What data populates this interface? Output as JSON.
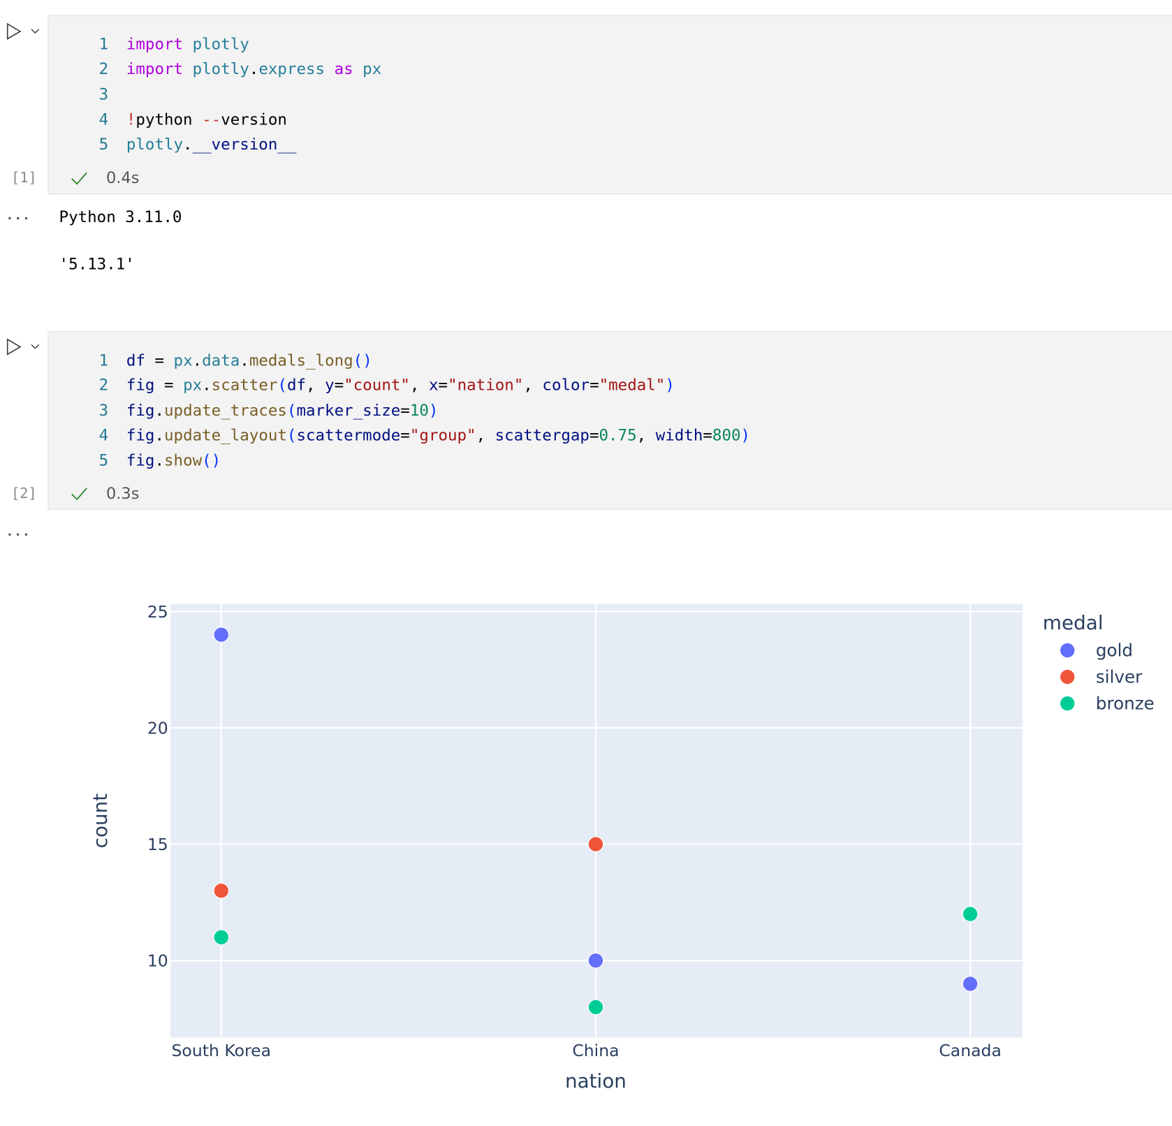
{
  "cells": [
    {
      "prompt": "[1]",
      "time": "0.4s",
      "line_numbers": [
        1,
        2,
        3,
        4,
        5
      ],
      "code": [
        [
          "import",
          " plotly"
        ],
        [
          "import",
          " plotly",
          ".",
          "express",
          " as",
          " px"
        ],
        [],
        [
          "!",
          "python",
          " --",
          "version"
        ],
        [
          "plotly",
          ".",
          "__version__"
        ]
      ],
      "output": [
        "Python 3.11.0",
        "'5.13.1'"
      ]
    },
    {
      "prompt": "[2]",
      "time": "0.3s",
      "line_numbers": [
        1,
        2,
        3,
        4,
        5
      ],
      "code": [
        [
          "df",
          " = ",
          "px",
          ".",
          "data",
          ".",
          "medals_long",
          "()"
        ],
        [
          "fig",
          " = ",
          "px",
          ".",
          "scatter",
          "(",
          "df",
          ", ",
          "y",
          "=",
          "\"count\"",
          ", ",
          "x",
          "=",
          "\"nation\"",
          ", ",
          "color",
          "=",
          "\"medal\"",
          ")"
        ],
        [
          "fig",
          ".",
          "update_traces",
          "(",
          "marker_size",
          "=",
          "10",
          ")"
        ],
        [
          "fig",
          ".",
          "update_layout",
          "(",
          "scattermode",
          "=",
          "\"group\"",
          ", ",
          "scattergap",
          "=",
          "0.75",
          ", ",
          "width",
          "=",
          "800",
          ")"
        ],
        [
          "fig",
          ".",
          "show",
          "()"
        ]
      ]
    }
  ],
  "chart_data": {
    "type": "scatter",
    "x_label": "nation",
    "y_label": "count",
    "legend_title": "medal",
    "legend": "right",
    "categories": [
      "South Korea",
      "China",
      "Canada"
    ],
    "series": [
      {
        "name": "gold",
        "color": "#636efa",
        "values": [
          24,
          10,
          9
        ]
      },
      {
        "name": "silver",
        "color": "#EF553B",
        "values": [
          13,
          15,
          12
        ]
      },
      {
        "name": "bronze",
        "color": "#00cc96",
        "values": [
          11,
          8,
          12
        ]
      }
    ],
    "ylim": [
      6.69,
      25.32
    ],
    "yticks": [
      10,
      15,
      20,
      25
    ],
    "grid": true
  }
}
